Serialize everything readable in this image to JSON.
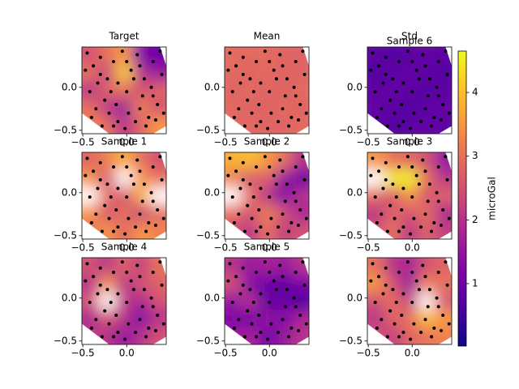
{
  "chart_data": {
    "type": "contour",
    "colormap": "plasma",
    "clim": [
      0.02,
      4.65
    ],
    "colorbar_label": "microGal",
    "colorbar_ticks": [
      1,
      2,
      3,
      4
    ],
    "xlim": [
      -0.51,
      0.45
    ],
    "ylim": [
      -0.54,
      0.47
    ],
    "xticks": [
      {
        "value": -0.5,
        "label": "−0.5"
      },
      {
        "value": 0,
        "label": "0.0"
      }
    ],
    "yticks": [
      {
        "value": -0.5,
        "label": "−0.5"
      },
      {
        "value": 0,
        "label": "0.0"
      }
    ],
    "points": {
      "x": [
        -0.45,
        -0.38,
        -0.3,
        -0.22,
        -0.15,
        -0.05,
        0.05,
        0.12,
        0.2,
        0.3,
        0.38,
        -0.42,
        -0.33,
        -0.25,
        -0.1,
        0.0,
        0.08,
        0.18,
        0.28,
        0.4,
        -0.47,
        -0.35,
        -0.2,
        -0.12,
        0.02,
        0.15,
        0.25,
        0.35,
        -0.4,
        -0.28,
        -0.15,
        -0.02,
        0.1,
        0.22,
        0.33,
        0.42,
        -0.3,
        -0.18,
        0.0,
        0.15,
        0.3,
        -0.1
      ],
      "y": [
        0.4,
        0.25,
        0.35,
        0.1,
        0.3,
        0.42,
        0.2,
        0.38,
        0.1,
        0.3,
        0.42,
        -0.05,
        0.05,
        -0.15,
        0.05,
        -0.05,
        0.1,
        -0.1,
        0.0,
        0.15,
        0.2,
        -0.25,
        -0.3,
        -0.2,
        -0.3,
        -0.25,
        -0.35,
        -0.2,
        -0.35,
        -0.45,
        -0.45,
        -0.48,
        -0.4,
        -0.45,
        -0.38,
        -0.3,
        0.15,
        -0.05,
        0.3,
        0.25,
        -0.1,
        -0.4
      ]
    },
    "panels": [
      {
        "titles": [
          "Target"
        ],
        "field": [
          [
            2.5,
            3.0,
            3.5,
            1.2,
            1.0
          ],
          [
            3.0,
            2.2,
            4.2,
            2.0,
            1.5
          ],
          [
            2.0,
            2.8,
            3.0,
            2.5,
            2.8
          ],
          [
            3.0,
            2.0,
            1.5,
            3.2,
            2.5
          ],
          [
            3.2,
            3.0,
            2.0,
            2.8,
            3.5
          ]
        ]
      },
      {
        "titles": [
          "Mean"
        ],
        "field": [
          [
            2.9,
            2.9,
            2.9,
            2.8,
            2.8
          ],
          [
            2.9,
            2.8,
            2.9,
            2.8,
            2.8
          ],
          [
            2.8,
            2.9,
            2.8,
            2.8,
            2.9
          ],
          [
            2.9,
            2.8,
            2.8,
            2.9,
            2.8
          ],
          [
            2.8,
            2.9,
            2.8,
            2.8,
            2.9
          ]
        ]
      },
      {
        "titles": [
          "Std",
          "Sample 6"
        ],
        "field": [
          [
            0.8,
            0.7,
            0.8,
            0.9,
            0.8
          ],
          [
            0.7,
            0.8,
            0.9,
            0.8,
            0.7
          ],
          [
            0.8,
            0.9,
            0.8,
            0.7,
            0.8
          ],
          [
            0.9,
            0.8,
            0.7,
            0.8,
            0.9
          ],
          [
            0.8,
            0.7,
            0.8,
            0.9,
            0.8
          ]
        ]
      },
      {
        "titles": [
          "Sample 1"
        ],
        "field": [
          [
            2.8,
            3.2,
            3.8,
            3.0,
            2.5
          ],
          [
            3.5,
            2.5,
            4.8,
            3.5,
            3.0
          ],
          [
            4.8,
            3.0,
            2.5,
            3.8,
            4.8
          ],
          [
            3.5,
            2.5,
            3.0,
            2.2,
            3.0
          ],
          [
            3.0,
            3.5,
            2.8,
            3.5,
            3.2
          ]
        ]
      },
      {
        "titles": [
          "Sample 2"
        ],
        "field": [
          [
            3.8,
            4.0,
            3.5,
            3.0,
            2.0
          ],
          [
            3.2,
            2.5,
            2.8,
            1.5,
            1.0
          ],
          [
            4.8,
            3.0,
            2.0,
            1.2,
            2.0
          ],
          [
            3.0,
            2.5,
            3.2,
            2.5,
            1.8
          ],
          [
            2.5,
            2.0,
            3.0,
            2.2,
            2.5
          ]
        ]
      },
      {
        "titles": [
          "Sample 3"
        ],
        "field": [
          [
            3.5,
            3.0,
            2.8,
            2.5,
            1.5
          ],
          [
            4.8,
            4.5,
            4.6,
            3.0,
            2.0
          ],
          [
            3.0,
            2.5,
            3.5,
            2.5,
            2.8
          ],
          [
            2.0,
            2.8,
            2.5,
            3.0,
            1.8
          ],
          [
            2.5,
            3.0,
            2.0,
            2.8,
            2.2
          ]
        ]
      },
      {
        "titles": [
          "Sample 4"
        ],
        "field": [
          [
            2.5,
            2.0,
            2.8,
            2.2,
            3.0
          ],
          [
            2.0,
            3.5,
            2.0,
            2.5,
            2.8
          ],
          [
            2.5,
            4.8,
            2.2,
            1.8,
            2.5
          ],
          [
            1.8,
            2.5,
            2.0,
            1.2,
            2.0
          ],
          [
            2.2,
            2.0,
            1.5,
            2.0,
            2.5
          ]
        ]
      },
      {
        "titles": [
          "Sample 5"
        ],
        "field": [
          [
            2.0,
            1.5,
            1.8,
            1.5,
            2.0
          ],
          [
            2.5,
            1.2,
            1.0,
            0.8,
            1.2
          ],
          [
            1.5,
            2.0,
            0.8,
            1.0,
            0.6
          ],
          [
            1.2,
            1.0,
            1.5,
            1.2,
            1.8
          ],
          [
            1.5,
            1.8,
            1.0,
            1.5,
            2.0
          ]
        ]
      },
      {
        "titles": [],
        "field": [
          [
            3.0,
            2.0,
            1.8,
            2.5,
            2.8
          ],
          [
            3.5,
            2.5,
            1.5,
            3.2,
            3.0
          ],
          [
            2.5,
            3.0,
            2.2,
            4.8,
            2.5
          ],
          [
            2.0,
            2.8,
            3.0,
            4.0,
            3.5
          ],
          [
            2.5,
            2.2,
            2.8,
            3.0,
            3.2
          ]
        ]
      }
    ]
  }
}
